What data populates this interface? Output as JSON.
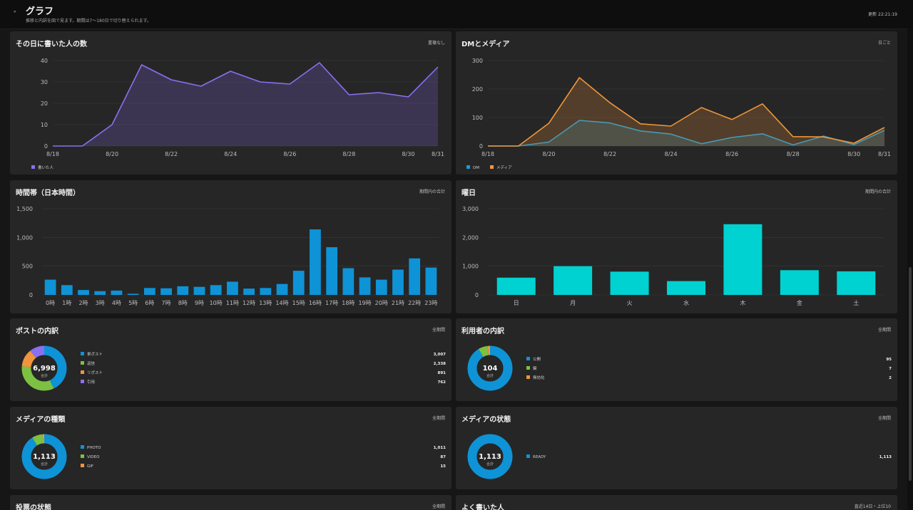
{
  "header": {
    "expand_icon": "»",
    "title": "グラフ",
    "subtitle": "推移と内訳を図で見ます。期間は7〜180日で切り替えられます。",
    "updated": "更新 22:21:19"
  },
  "colors": {
    "blue": "#0e93d6",
    "purple": "#8b6ff0",
    "orange": "#f0953b",
    "green": "#7cc142",
    "cyan": "#00d1d1"
  },
  "cards": {
    "writers": {
      "title": "その日に書いた人の数",
      "note": "重複なし"
    },
    "dm": {
      "title": "DMとメディア",
      "note": "日ごと"
    },
    "hour": {
      "title": "時間帯（日本時間）",
      "note": "期間内の合計"
    },
    "weekday": {
      "title": "曜日",
      "note": "期間内の合計"
    },
    "posts": {
      "title": "ポストの内訳",
      "note": "全期間"
    },
    "users": {
      "title": "利用者の内訳",
      "note": "全期間"
    },
    "media_type": {
      "title": "メディアの種類",
      "note": "全期間"
    },
    "media_status": {
      "title": "メディアの状態",
      "note": "全期間"
    },
    "votes": {
      "title": "投票の状態",
      "note": "全期間"
    },
    "top_writers": {
      "title": "よく書いた人",
      "note": "直近14日・上位10"
    }
  },
  "chart_data": [
    {
      "id": "writers",
      "type": "area",
      "x": [
        "8/18",
        "8/19",
        "8/20",
        "8/21",
        "8/22",
        "8/23",
        "8/24",
        "8/25",
        "8/26",
        "8/27",
        "8/28",
        "8/29",
        "8/30",
        "8/31"
      ],
      "x_ticks": [
        "8/18",
        "8/20",
        "8/22",
        "8/24",
        "8/26",
        "8/28",
        "8/30",
        "8/31"
      ],
      "series": [
        {
          "name": "書いた人",
          "color": "#8b6ff0",
          "values": [
            0,
            0,
            10,
            38,
            31,
            28,
            35,
            30,
            29,
            39,
            24,
            25,
            23,
            37
          ]
        }
      ],
      "ylim": [
        0,
        40
      ],
      "y_ticks": [
        "0",
        "10",
        "20",
        "30",
        "40"
      ],
      "grid": true,
      "legend": "bottom-left"
    },
    {
      "id": "dm",
      "type": "area",
      "x": [
        "8/18",
        "8/19",
        "8/20",
        "8/21",
        "8/22",
        "8/23",
        "8/24",
        "8/25",
        "8/26",
        "8/27",
        "8/28",
        "8/29",
        "8/30",
        "8/31"
      ],
      "x_ticks": [
        "8/18",
        "8/20",
        "8/22",
        "8/24",
        "8/26",
        "8/28",
        "8/30",
        "8/31"
      ],
      "series": [
        {
          "name": "DM",
          "color": "#1a9ad6",
          "values": [
            0,
            0,
            14,
            90,
            81,
            53,
            42,
            8,
            30,
            43,
            4,
            35,
            5,
            55
          ]
        },
        {
          "name": "メディア",
          "color": "#f0953b",
          "values": [
            0,
            0,
            80,
            240,
            152,
            78,
            70,
            135,
            93,
            148,
            33,
            32,
            10,
            65
          ]
        }
      ],
      "ylim": [
        0,
        300
      ],
      "y_ticks": [
        "0",
        "100",
        "200",
        "300"
      ],
      "grid": true,
      "legend": "bottom-left"
    },
    {
      "id": "hour",
      "type": "bar",
      "categories": [
        "0時",
        "1時",
        "2時",
        "3時",
        "4時",
        "5時",
        "6時",
        "7時",
        "8時",
        "9時",
        "10時",
        "11時",
        "12時",
        "13時",
        "14時",
        "15時",
        "16時",
        "17時",
        "18時",
        "19時",
        "20時",
        "21時",
        "22時",
        "23時"
      ],
      "values": [
        265,
        170,
        85,
        65,
        75,
        20,
        120,
        115,
        150,
        140,
        170,
        230,
        110,
        120,
        190,
        420,
        1140,
        830,
        465,
        305,
        265,
        440,
        635,
        475
      ],
      "color": "#0e93d6",
      "ylim": [
        0,
        1500
      ],
      "y_ticks": [
        "0",
        "500",
        "1,000",
        "1,500"
      ],
      "grid": true
    },
    {
      "id": "weekday",
      "type": "bar",
      "categories": [
        "日",
        "月",
        "火",
        "水",
        "木",
        "金",
        "土"
      ],
      "values": [
        600,
        1000,
        810,
        480,
        2460,
        860,
        820
      ],
      "color": "#00d1d1",
      "ylim": [
        0,
        3000
      ],
      "y_ticks": [
        "0",
        "1,000",
        "2,000",
        "3,000"
      ],
      "grid": true
    },
    {
      "id": "posts",
      "type": "pie",
      "total": "6,998",
      "total_label": "合計",
      "slices": [
        {
          "label": "単ポスト",
          "value": 3007,
          "display": "3,007",
          "color": "#0e93d6"
        },
        {
          "label": "返信",
          "value": 2338,
          "display": "2,338",
          "color": "#7cc142"
        },
        {
          "label": "リポスト",
          "value": 891,
          "display": "891",
          "color": "#f0953b"
        },
        {
          "label": "引用",
          "value": 762,
          "display": "762",
          "color": "#8b6ff0"
        }
      ]
    },
    {
      "id": "users",
      "type": "pie",
      "total": "104",
      "total_label": "合計",
      "slices": [
        {
          "label": "公開",
          "value": 95,
          "display": "95",
          "color": "#0e93d6"
        },
        {
          "label": "鍵",
          "value": 7,
          "display": "7",
          "color": "#7cc142"
        },
        {
          "label": "無効化",
          "value": 2,
          "display": "2",
          "color": "#f0953b"
        }
      ]
    },
    {
      "id": "media_type",
      "type": "pie",
      "total": "1,113",
      "total_label": "合計",
      "slices": [
        {
          "label": "PHOTO",
          "value": 1011,
          "display": "1,011",
          "color": "#0e93d6"
        },
        {
          "label": "VIDEO",
          "value": 87,
          "display": "87",
          "color": "#7cc142"
        },
        {
          "label": "GIF",
          "value": 15,
          "display": "15",
          "color": "#f0953b"
        }
      ]
    },
    {
      "id": "media_status",
      "type": "pie",
      "total": "1,113",
      "total_label": "合計",
      "slices": [
        {
          "label": "READY",
          "value": 1113,
          "display": "1,113",
          "color": "#0e93d6"
        }
      ]
    }
  ]
}
